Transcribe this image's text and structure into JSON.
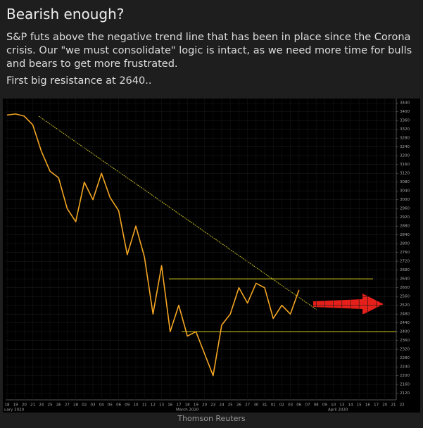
{
  "chart_data": {
    "type": "line",
    "title": "Bearish enough?",
    "subtitle": "S&P futs above the negative trend line that has been in place since the Corona crisis. Our \"we must consolidate\" logic is intact, as we need more time for bulls and bears to get more frustrated.",
    "annotation": "First big resistance at 2640..",
    "source": "Thomson Reuters",
    "categories": [
      "18",
      "19",
      "20",
      "21",
      "24",
      "25",
      "26",
      "27",
      "28",
      "02",
      "03",
      "04",
      "05",
      "06",
      "09",
      "10",
      "11",
      "12",
      "13",
      "16",
      "17",
      "18",
      "19",
      "20",
      "23",
      "24",
      "25",
      "26",
      "27",
      "30",
      "31",
      "01",
      "02",
      "03",
      "06",
      "07",
      "08",
      "09",
      "10",
      "13",
      "14",
      "15",
      "16",
      "17",
      "20",
      "21",
      "22"
    ],
    "month_labels": [
      "uary 2020",
      "March 2020",
      "April 2020"
    ],
    "values": [
      3385,
      3390,
      3380,
      3340,
      3220,
      3130,
      3100,
      2960,
      2900,
      3080,
      3000,
      3120,
      3010,
      2950,
      2750,
      2880,
      2740,
      2480,
      2700,
      2400,
      2520,
      2380,
      2400,
      2300,
      2200,
      2430,
      2480,
      2600,
      2530,
      2620,
      2600,
      2460,
      2520,
      2480,
      2590,
      null,
      null,
      null,
      null,
      null,
      null,
      null,
      null,
      null,
      null,
      null,
      null
    ],
    "color": "#f5a623",
    "levels": [
      2640,
      2400
    ],
    "level_color": "#d8d020",
    "ylim": [
      2090,
      3460
    ],
    "yticks": [
      2120,
      2160,
      2200,
      2240,
      2280,
      2320,
      2360,
      2400,
      2440,
      2480,
      2520,
      2560,
      2600,
      2640,
      2680,
      2720,
      2760,
      2800,
      2840,
      2880,
      2920,
      2960,
      3000,
      3040,
      3080,
      3120,
      3160,
      3200,
      3240,
      3280,
      3320,
      3360,
      3400,
      3440
    ],
    "grid": true
  }
}
